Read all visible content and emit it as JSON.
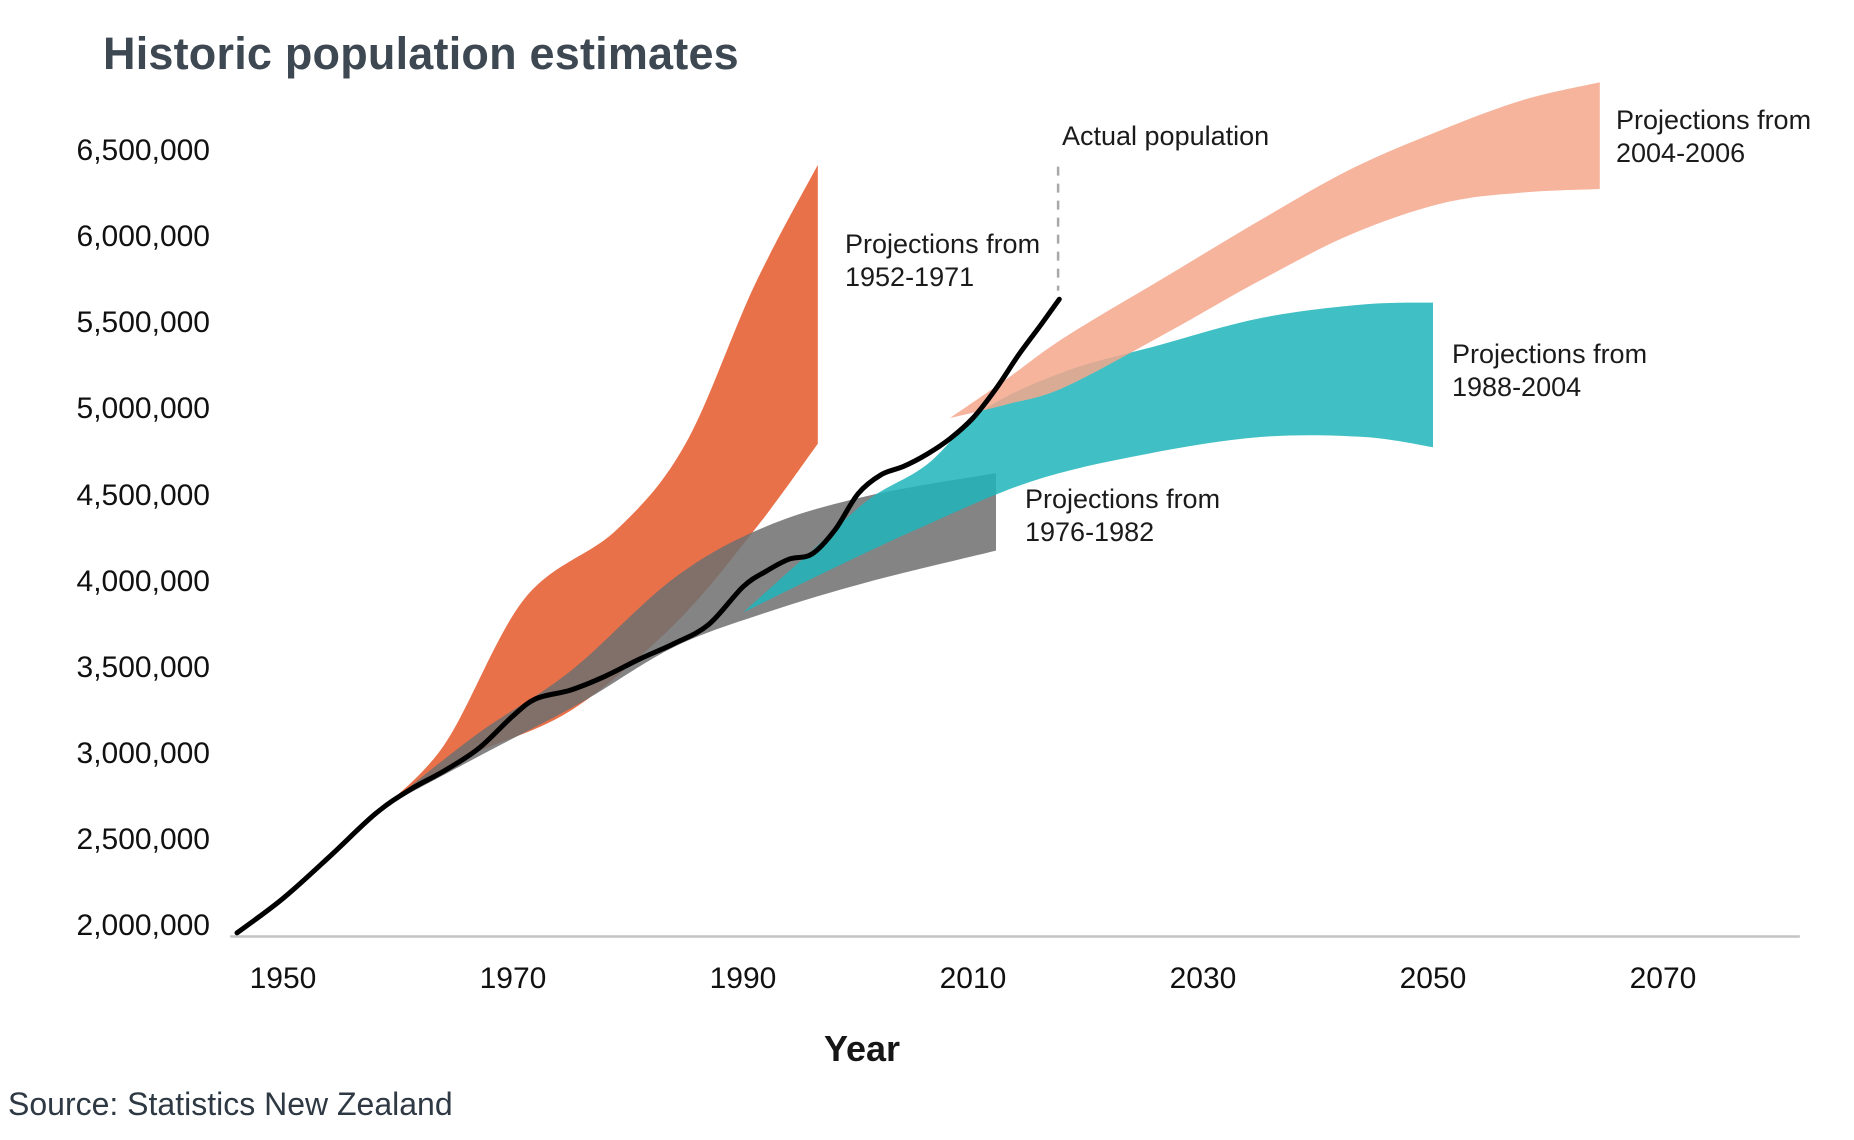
{
  "title": "Historic population estimates",
  "x_axis_label": "Year",
  "source_note": "Source: Statistics New Zealand",
  "labels": {
    "actual": {
      "line1": "Actual population"
    },
    "p1952": {
      "line1": "Projections from",
      "line2": "1952-1971"
    },
    "p1976": {
      "line1": "Projections from",
      "line2": "1976-1982"
    },
    "p1988": {
      "line1": "Projections from",
      "line2": "1988-2004"
    },
    "p2004": {
      "line1": "Projections from",
      "line2": "2004-2006"
    }
  },
  "colors": {
    "actual_line": "#000000",
    "projection_1952_1971": "#E8714A",
    "projection_1976_1982": "#6F6F6F",
    "projection_1988_2004": "#1FB5BB",
    "projection_2004_2006": "#F5A78C",
    "axis_line": "#C4C4C4",
    "leader_line": "#A8A8A8",
    "title_text": "#3D4852",
    "body_text": "#1B1B1B"
  },
  "chart_data": {
    "type": "area",
    "title": "Historic population estimates",
    "xlabel": "Year",
    "ylabel": "",
    "grid": false,
    "legend": "labels annotated directly on chart",
    "x_ticks": [
      1950,
      1970,
      1990,
      2010,
      2030,
      2050,
      2070
    ],
    "y_ticks": [
      {
        "value": 6500000,
        "label": "6,500,000"
      },
      {
        "value": 6000000,
        "label": "6,000,000"
      },
      {
        "value": 5500000,
        "label": "5,500,000"
      },
      {
        "value": 5000000,
        "label": "5,000,000"
      },
      {
        "value": 4500000,
        "label": "4,500,000"
      },
      {
        "value": 4000000,
        "label": "4,000,000"
      },
      {
        "value": 3500000,
        "label": "3,500,000"
      },
      {
        "value": 3000000,
        "label": "3,000,000"
      },
      {
        "value": 2500000,
        "label": "2,500,000"
      },
      {
        "value": 2000000,
        "label": "2,000,000"
      }
    ],
    "x_range": [
      1944,
      2082
    ],
    "y_range": [
      2000000,
      6900000
    ],
    "series": [
      {
        "name": "Projections from 1952-1971",
        "type": "band",
        "color": "#E8714A",
        "opacity": 1,
        "top": [
          [
            1958,
            2650000
          ],
          [
            1964,
            3050000
          ],
          [
            1971,
            3900000
          ],
          [
            1979,
            4300000
          ],
          [
            1985,
            4800000
          ],
          [
            1991,
            5720000
          ],
          [
            1996.5,
            6420000
          ]
        ],
        "bottom": [
          [
            1958,
            2650000
          ],
          [
            1966,
            2980000
          ],
          [
            1975,
            3250000
          ],
          [
            1984,
            3750000
          ],
          [
            1991,
            4300000
          ],
          [
            1996.5,
            4800000
          ]
        ]
      },
      {
        "name": "Projections from 1976-1982",
        "type": "band",
        "color": "#6F6F6F",
        "opacity": 0.85,
        "top": [
          [
            1959,
            2700000
          ],
          [
            1967,
            3120000
          ],
          [
            1975,
            3480000
          ],
          [
            1984,
            4020000
          ],
          [
            1992,
            4320000
          ],
          [
            2001,
            4500000
          ],
          [
            2012,
            4630000
          ]
        ],
        "bottom": [
          [
            1959,
            2700000
          ],
          [
            1968,
            3020000
          ],
          [
            1976,
            3300000
          ],
          [
            1984,
            3620000
          ],
          [
            1992,
            3820000
          ],
          [
            2001,
            4000000
          ],
          [
            2012,
            4180000
          ]
        ]
      },
      {
        "name": "Projections from 1988-2004",
        "type": "band",
        "color": "#1FB5BB",
        "opacity": 0.85,
        "top": [
          [
            1990,
            3820000
          ],
          [
            1996,
            4180000
          ],
          [
            2001,
            4480000
          ],
          [
            2006,
            4680000
          ],
          [
            2011,
            5000000
          ],
          [
            2018,
            5220000
          ],
          [
            2026,
            5370000
          ],
          [
            2035,
            5530000
          ],
          [
            2044,
            5610000
          ],
          [
            2050,
            5620000
          ]
        ],
        "bottom": [
          [
            1990,
            3820000
          ],
          [
            1997,
            4050000
          ],
          [
            2005,
            4300000
          ],
          [
            2015,
            4580000
          ],
          [
            2025,
            4740000
          ],
          [
            2035,
            4840000
          ],
          [
            2044,
            4840000
          ],
          [
            2050,
            4780000
          ]
        ]
      },
      {
        "name": "Projections from 2004-2006",
        "type": "band",
        "color": "#F5A78C",
        "opacity": 0.85,
        "top": [
          [
            2008,
            4950000
          ],
          [
            2013,
            5180000
          ],
          [
            2018,
            5420000
          ],
          [
            2027,
            5780000
          ],
          [
            2035,
            6100000
          ],
          [
            2043,
            6400000
          ],
          [
            2051,
            6630000
          ],
          [
            2058,
            6800000
          ],
          [
            2064.5,
            6900000
          ]
        ],
        "bottom": [
          [
            2008,
            4950000
          ],
          [
            2013,
            5030000
          ],
          [
            2018,
            5130000
          ],
          [
            2027,
            5450000
          ],
          [
            2035,
            5750000
          ],
          [
            2043,
            6020000
          ],
          [
            2051,
            6200000
          ],
          [
            2058,
            6260000
          ],
          [
            2064.5,
            6280000
          ]
        ]
      },
      {
        "name": "Actual population",
        "type": "line",
        "color": "#000000",
        "points": [
          [
            1946,
            1960000
          ],
          [
            1950,
            2160000
          ],
          [
            1954,
            2400000
          ],
          [
            1958,
            2650000
          ],
          [
            1961,
            2790000
          ],
          [
            1964,
            2900000
          ],
          [
            1967,
            3030000
          ],
          [
            1970,
            3220000
          ],
          [
            1972,
            3320000
          ],
          [
            1975,
            3370000
          ],
          [
            1978,
            3450000
          ],
          [
            1981,
            3550000
          ],
          [
            1984,
            3640000
          ],
          [
            1987,
            3750000
          ],
          [
            1990,
            3970000
          ],
          [
            1992,
            4060000
          ],
          [
            1994,
            4130000
          ],
          [
            1996,
            4160000
          ],
          [
            1998,
            4300000
          ],
          [
            2000,
            4510000
          ],
          [
            2002,
            4620000
          ],
          [
            2004,
            4670000
          ],
          [
            2006,
            4740000
          ],
          [
            2008,
            4830000
          ],
          [
            2010,
            4950000
          ],
          [
            2012,
            5120000
          ],
          [
            2014,
            5320000
          ],
          [
            2016,
            5500000
          ],
          [
            2017.5,
            5640000
          ]
        ]
      }
    ],
    "annotation_leader": {
      "x_year": 2017.4,
      "from_value": 6410000,
      "to_value": 5690000
    },
    "x_axis_baseline": {
      "from_year": 1945.4,
      "to_year": 2081.9
    }
  }
}
